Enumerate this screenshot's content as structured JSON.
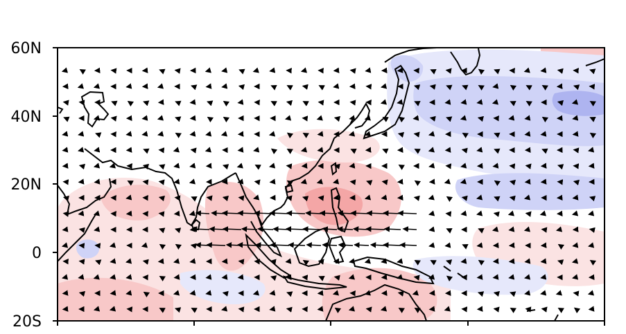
{
  "map": {
    "lat_labels": [
      "60N",
      "40N",
      "20N",
      "0",
      "20S"
    ],
    "lon_ticks": 5,
    "colors": {
      "warm_strong": "#f4a6a6",
      "warm_mid": "#f8c8c8",
      "warm_light": "#fbe3e3",
      "cool_light": "#e6e8fb",
      "cool_mid": "#cfd3f7",
      "cool_strong": "#aeb4f0",
      "coast": "#000000",
      "vector": "#000000"
    }
  }
}
